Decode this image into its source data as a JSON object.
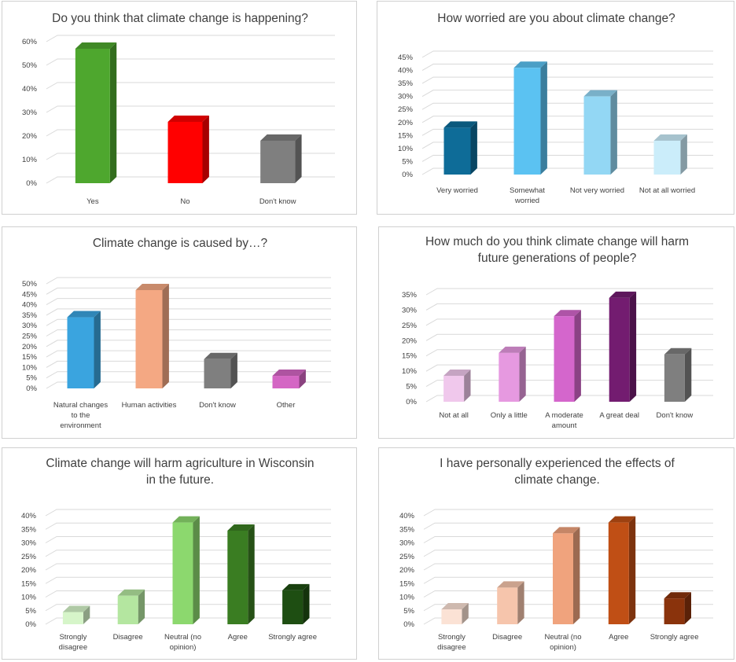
{
  "chart_data": [
    {
      "type": "bar",
      "title": [
        "Do you think that climate change is happening?"
      ],
      "categories": [
        [
          "Yes"
        ],
        [
          "No"
        ],
        [
          "Don't know"
        ]
      ],
      "values": [
        57,
        26,
        18
      ],
      "ylim": [
        0,
        60
      ],
      "yticks": [
        "0%",
        "10%",
        "20%",
        "30%",
        "40%",
        "50%",
        "60%"
      ],
      "colors": [
        "#4EA72E",
        "#FF0000",
        "#7F7F7F"
      ],
      "grid": true
    },
    {
      "type": "bar",
      "title": [
        "How worried are you about climate change?"
      ],
      "categories": [
        [
          "Very worried"
        ],
        [
          "Somewhat",
          "worried"
        ],
        [
          "Not very worried"
        ],
        [
          "Not at all worried"
        ]
      ],
      "values": [
        18,
        41,
        30,
        13
      ],
      "ylim": [
        0,
        45
      ],
      "yticks": [
        "0%",
        "5%",
        "10%",
        "15%",
        "20%",
        "25%",
        "30%",
        "35%",
        "40%",
        "45%"
      ],
      "colors": [
        "#0E6C98",
        "#5BC2F2",
        "#93D7F4",
        "#CBEDFA"
      ],
      "grid": true
    },
    {
      "type": "bar",
      "title": [
        "Climate change is caused by…?"
      ],
      "categories": [
        [
          "Natural changes",
          "to the",
          "environment"
        ],
        [
          "Human activities"
        ],
        [
          "Don't know"
        ],
        [
          "Other"
        ]
      ],
      "values": [
        34,
        47,
        14,
        6
      ],
      "ylim": [
        0,
        50
      ],
      "yticks": [
        "0%",
        "5%",
        "10%",
        "15%",
        "20%",
        "25%",
        "30%",
        "35%",
        "40%",
        "45%",
        "50%"
      ],
      "colors": [
        "#3AA4DF",
        "#F4A883",
        "#7F7F7F",
        "#D466C4"
      ],
      "grid": true
    },
    {
      "type": "bar",
      "title": [
        "How much do you think climate change will harm",
        "future generations of people?"
      ],
      "categories": [
        [
          "Not at all"
        ],
        [
          "Only a little"
        ],
        [
          "A moderate",
          "amount"
        ],
        [
          "A great deal"
        ],
        [
          "Don't know"
        ]
      ],
      "values": [
        8.5,
        16,
        28,
        34,
        15.5
      ],
      "ylim": [
        0,
        35
      ],
      "yticks": [
        "0%",
        "5%",
        "10%",
        "15%",
        "20%",
        "25%",
        "30%",
        "35%"
      ],
      "colors": [
        "#F0C8EC",
        "#E699E0",
        "#D466CC",
        "#731C70",
        "#7F7F7F"
      ],
      "grid": true
    },
    {
      "type": "bar",
      "title": [
        "Climate change will harm agriculture in Wisconsin",
        "in the future."
      ],
      "categories": [
        [
          "Strongly",
          "disagree"
        ],
        [
          "Disagree"
        ],
        [
          "Neutral (no",
          "opinion)"
        ],
        [
          "Agree"
        ],
        [
          "Strongly agree"
        ]
      ],
      "values": [
        4.5,
        10.5,
        37.5,
        34.5,
        12.5
      ],
      "ylim": [
        0,
        40
      ],
      "yticks": [
        "0%",
        "5%",
        "10%",
        "15%",
        "20%",
        "25%",
        "30%",
        "35%",
        "40%"
      ],
      "colors": [
        "#D6F5C9",
        "#B4E6A0",
        "#8CD86E",
        "#3A7D22",
        "#1E4E12"
      ],
      "grid": true
    },
    {
      "type": "bar",
      "title": [
        "I have personally experienced the effects of",
        "climate change."
      ],
      "categories": [
        [
          "Strongly",
          "disagree"
        ],
        [
          "Disagree"
        ],
        [
          "Neutral (no",
          "opinion)"
        ],
        [
          "Agree"
        ],
        [
          "Strongly agree"
        ]
      ],
      "values": [
        5.5,
        13.5,
        33.5,
        37.5,
        9.5
      ],
      "ylim": [
        0,
        40
      ],
      "yticks": [
        "0%",
        "5%",
        "10%",
        "15%",
        "20%",
        "25%",
        "30%",
        "35%",
        "40%"
      ],
      "colors": [
        "#FBE2D5",
        "#F6C5AC",
        "#F0A37D",
        "#C04F15",
        "#8A330C"
      ],
      "grid": true
    }
  ]
}
